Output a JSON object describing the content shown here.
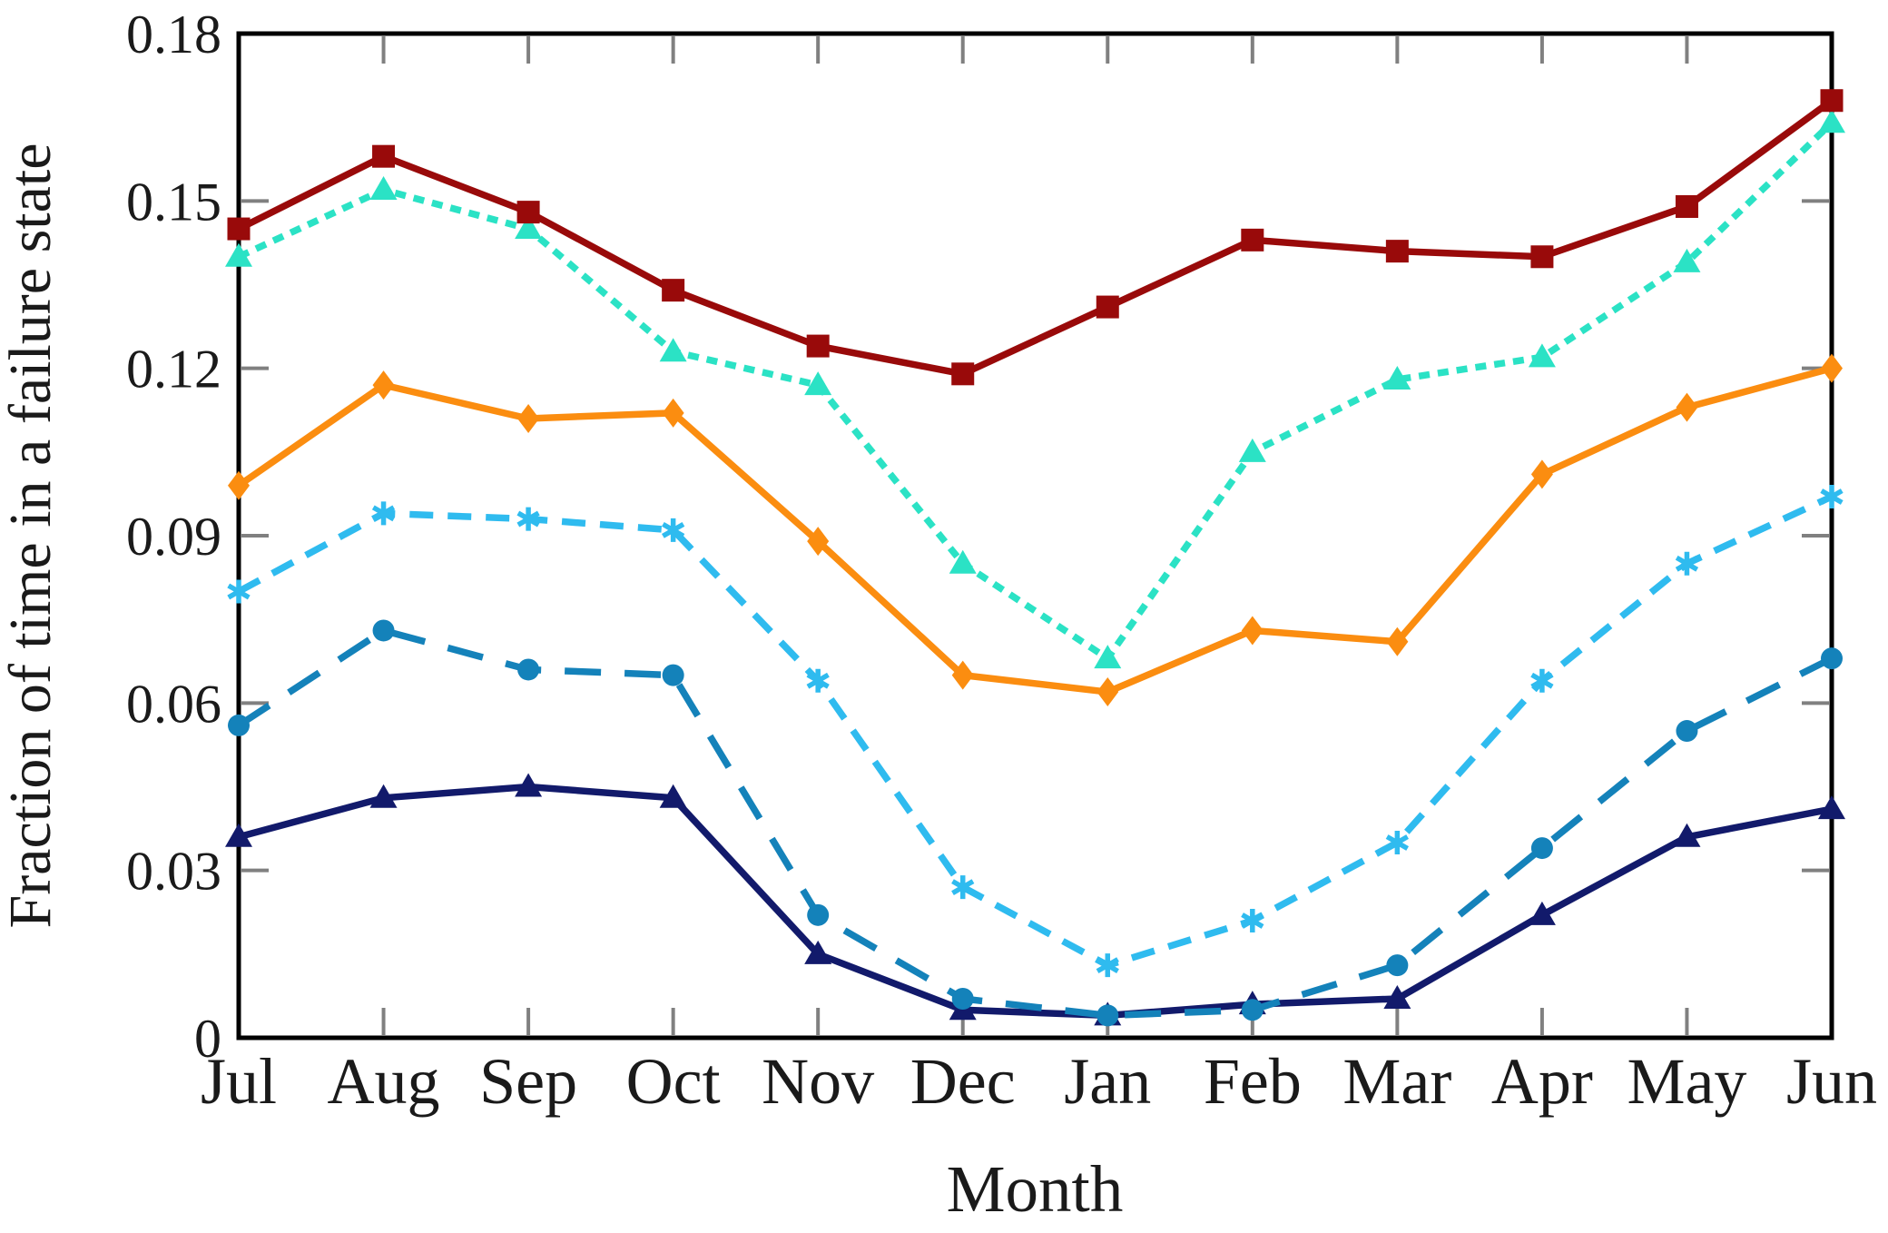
{
  "page": {
    "background": "#ffffff"
  },
  "chart_data": {
    "type": "line",
    "title": "",
    "xlabel": "Month",
    "ylabel": "Fraction of time in a failure state",
    "categories": [
      "Jul",
      "Aug",
      "Sep",
      "Oct",
      "Nov",
      "Dec",
      "Jan",
      "Feb",
      "Mar",
      "Apr",
      "May",
      "Jun"
    ],
    "ylim": [
      0,
      0.18
    ],
    "yticks": [
      0,
      0.03,
      0.06,
      0.09,
      0.12,
      0.15,
      0.18
    ],
    "ytick_labels": [
      "0",
      "0.03",
      "0.06",
      "0.09",
      "0.12",
      "0.15",
      "0.18"
    ],
    "grid": false,
    "legend": {
      "visible": false
    },
    "axis_color": "#000000",
    "tick_color": "#808080",
    "series": [
      {
        "name": "dark-red-squares",
        "color": "#990A0A",
        "marker": "square",
        "line_style": "solid",
        "values": [
          0.145,
          0.158,
          0.148,
          0.134,
          0.124,
          0.119,
          0.131,
          0.143,
          0.141,
          0.14,
          0.149,
          0.168
        ]
      },
      {
        "name": "turquoise-triangles",
        "color": "#2BE2C5",
        "marker": "triangle",
        "line_style": "dotted",
        "values": [
          0.14,
          0.152,
          0.145,
          0.123,
          0.117,
          0.085,
          0.068,
          0.105,
          0.118,
          0.122,
          0.139,
          0.164
        ]
      },
      {
        "name": "orange-diamonds",
        "color": "#FB8D10",
        "marker": "diamond",
        "line_style": "solid",
        "values": [
          0.099,
          0.117,
          0.111,
          0.112,
          0.089,
          0.065,
          0.062,
          0.073,
          0.071,
          0.101,
          0.113,
          0.12
        ]
      },
      {
        "name": "light-blue-asterisks",
        "color": "#2FBBEF",
        "marker": "asterisk",
        "line_style": "dashed",
        "values": [
          0.08,
          0.094,
          0.093,
          0.091,
          0.064,
          0.027,
          0.013,
          0.021,
          0.035,
          0.064,
          0.085,
          0.097
        ]
      },
      {
        "name": "teal-circles",
        "color": "#1482BA",
        "marker": "circle",
        "line_style": "longdash",
        "values": [
          0.056,
          0.073,
          0.066,
          0.065,
          0.022,
          0.007,
          0.004,
          0.005,
          0.013,
          0.034,
          0.055,
          0.068
        ]
      },
      {
        "name": "navy-triangles",
        "color": "#121A6B",
        "marker": "triangle",
        "line_style": "solid",
        "values": [
          0.036,
          0.043,
          0.045,
          0.043,
          0.015,
          0.005,
          0.004,
          0.006,
          0.007,
          0.022,
          0.036,
          0.041
        ]
      }
    ]
  }
}
